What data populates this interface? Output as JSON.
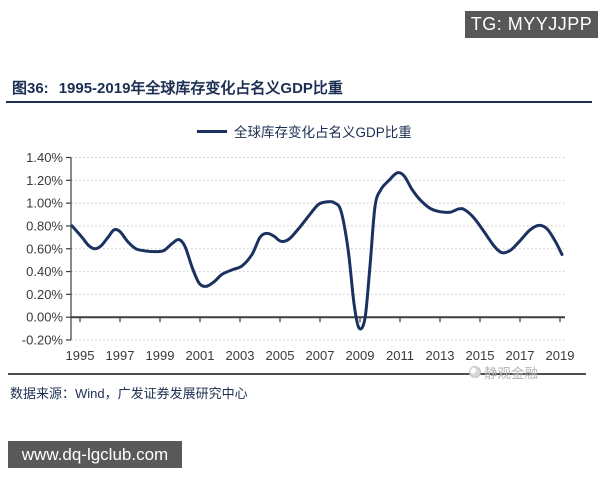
{
  "badges": {
    "tg_label": "TG: MYYJJPP",
    "website_label": "www.dq-lgclub.com"
  },
  "figure": {
    "label": "图36:",
    "title": "1995-2019年全球库存变化占名义GDP比重"
  },
  "legend": {
    "series_label": "全球库存变化占名义GDP比重"
  },
  "source": {
    "text": "数据来源：Wind，广发证券发展研究中心"
  },
  "watermark": {
    "text": "静观金融"
  },
  "colors": {
    "line": "#1b3160",
    "title_navy": "#1c2e52",
    "badge_bg": "#58585a",
    "grid": "#c9c9c9",
    "axis": "#3d3d3d",
    "watermark": "#b5b5b5"
  },
  "chart_data": {
    "type": "line",
    "title": "全球库存变化占名义GDP比重",
    "xlabel": "",
    "ylabel": "",
    "xlim": [
      1994.55,
      2019.25
    ],
    "ylim": [
      -0.2,
      1.4
    ],
    "x_ticks": [
      1995,
      1997,
      1999,
      2001,
      2003,
      2005,
      2007,
      2009,
      2011,
      2013,
      2015,
      2017,
      2019
    ],
    "y_ticks": [
      -0.2,
      0.0,
      0.2,
      0.4,
      0.6,
      0.8,
      1.0,
      1.2,
      1.4
    ],
    "y_unit": "%",
    "grid": "horizontal-dotted",
    "legend_position": "top-center",
    "series": [
      {
        "name": "全球库存变化占名义GDP比重",
        "color": "#1b3160",
        "points": [
          [
            1994.6,
            0.8
          ],
          [
            1995.1,
            0.7
          ],
          [
            1995.45,
            0.625
          ],
          [
            1995.75,
            0.6
          ],
          [
            1996.05,
            0.625
          ],
          [
            1996.4,
            0.7
          ],
          [
            1996.7,
            0.765
          ],
          [
            1997.0,
            0.75
          ],
          [
            1997.4,
            0.66
          ],
          [
            1997.8,
            0.6
          ],
          [
            1998.3,
            0.58
          ],
          [
            1998.8,
            0.575
          ],
          [
            1999.2,
            0.585
          ],
          [
            1999.6,
            0.645
          ],
          [
            1999.95,
            0.68
          ],
          [
            2000.25,
            0.62
          ],
          [
            2000.6,
            0.44
          ],
          [
            2000.95,
            0.3
          ],
          [
            2001.3,
            0.27
          ],
          [
            2001.7,
            0.31
          ],
          [
            2002.1,
            0.375
          ],
          [
            2002.6,
            0.415
          ],
          [
            2003.1,
            0.45
          ],
          [
            2003.6,
            0.55
          ],
          [
            2004.0,
            0.7
          ],
          [
            2004.35,
            0.735
          ],
          [
            2004.7,
            0.71
          ],
          [
            2005.05,
            0.665
          ],
          [
            2005.45,
            0.685
          ],
          [
            2005.9,
            0.77
          ],
          [
            2006.4,
            0.88
          ],
          [
            2006.9,
            0.985
          ],
          [
            2007.3,
            1.01
          ],
          [
            2007.7,
            1.005
          ],
          [
            2008.05,
            0.93
          ],
          [
            2008.4,
            0.6
          ],
          [
            2008.7,
            0.12
          ],
          [
            2008.95,
            -0.095
          ],
          [
            2009.25,
            -0.01
          ],
          [
            2009.5,
            0.45
          ],
          [
            2009.75,
            0.97
          ],
          [
            2010.05,
            1.12
          ],
          [
            2010.45,
            1.2
          ],
          [
            2010.85,
            1.265
          ],
          [
            2011.2,
            1.24
          ],
          [
            2011.6,
            1.12
          ],
          [
            2012.0,
            1.03
          ],
          [
            2012.5,
            0.955
          ],
          [
            2013.0,
            0.925
          ],
          [
            2013.5,
            0.92
          ],
          [
            2013.95,
            0.95
          ],
          [
            2014.25,
            0.94
          ],
          [
            2014.7,
            0.87
          ],
          [
            2015.2,
            0.75
          ],
          [
            2015.7,
            0.625
          ],
          [
            2016.1,
            0.565
          ],
          [
            2016.55,
            0.59
          ],
          [
            2017.0,
            0.67
          ],
          [
            2017.5,
            0.765
          ],
          [
            2017.95,
            0.805
          ],
          [
            2018.35,
            0.775
          ],
          [
            2018.75,
            0.67
          ],
          [
            2019.1,
            0.55
          ]
        ]
      }
    ]
  }
}
